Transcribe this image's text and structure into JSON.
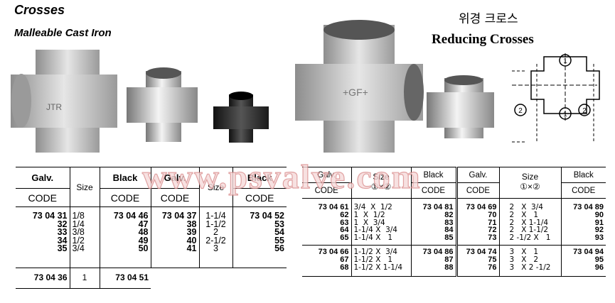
{
  "left": {
    "title": "Crosses",
    "subtitle": "Malleable Cast Iron"
  },
  "right": {
    "title_korean": "위경 크로스",
    "title": "Reducing Crosses"
  },
  "watermark": "www.psvalve.com",
  "diagram": {
    "labels": [
      "1",
      "2",
      "2",
      "1"
    ]
  },
  "equal_table": {
    "headers": {
      "galv": "Galv.",
      "black": "Black",
      "size": "Size",
      "code": "CODE"
    },
    "groups": [
      {
        "galv": [
          "73 04 31",
          "32",
          "33",
          "34",
          "35"
        ],
        "size": [
          "1/8",
          "1/4",
          "3/8",
          "1/2",
          "3/4"
        ],
        "black": [
          "73 04 46",
          "47",
          "48",
          "49",
          "50"
        ]
      },
      {
        "galv": [
          "73 04 37",
          "38",
          "39",
          "40",
          "41"
        ],
        "size": [
          "1-1/4",
          "1-1/2",
          "2",
          "2-1/2",
          "3"
        ],
        "black": [
          "73 04 52",
          "53",
          "54",
          "55",
          "56"
        ]
      }
    ],
    "last_row": {
      "galv": "73 04 36",
      "size": "1",
      "black": "73 04 51"
    }
  },
  "reducing_table": {
    "headers": {
      "galv": "Galv.",
      "black": "Black",
      "size": "Size",
      "size_sub": "①×②",
      "code": "CODE"
    },
    "rows": [
      {
        "galv": [
          "73 04 61",
          "62",
          "63",
          "64",
          "65"
        ],
        "size": [
          "3/4  X  1/2",
          "1  X  1/2",
          "1  X  3/4",
          "1-1/4 X  3/4",
          "1-1/4 X   1"
        ],
        "black": [
          "73 04 81",
          "82",
          "83",
          "84",
          "85"
        ],
        "galv2": [
          "73 04 69",
          "70",
          "71",
          "72",
          "73"
        ],
        "size2": [
          "2   X  3/4",
          "2   X   1",
          "2   X 1-1/4",
          "2   X 1-1/2",
          "2 -1/2 X   1"
        ],
        "black2": [
          "73 04 89",
          "90",
          "91",
          "92",
          "93"
        ]
      },
      {
        "galv": [
          "73 04 66",
          "67",
          "68"
        ],
        "size": [
          "1-1/2 X  3/4",
          "1-1/2 X   1",
          "1-1/2 X 1-1/4"
        ],
        "black": [
          "73 04 86",
          "87",
          "88"
        ],
        "galv2": [
          "73 04 74",
          "75",
          "76"
        ],
        "size2": [
          "3   X   1",
          "3   X   2",
          "3   X 2 -1/2"
        ],
        "black2": [
          "73 04 94",
          "95",
          "96"
        ]
      }
    ]
  }
}
